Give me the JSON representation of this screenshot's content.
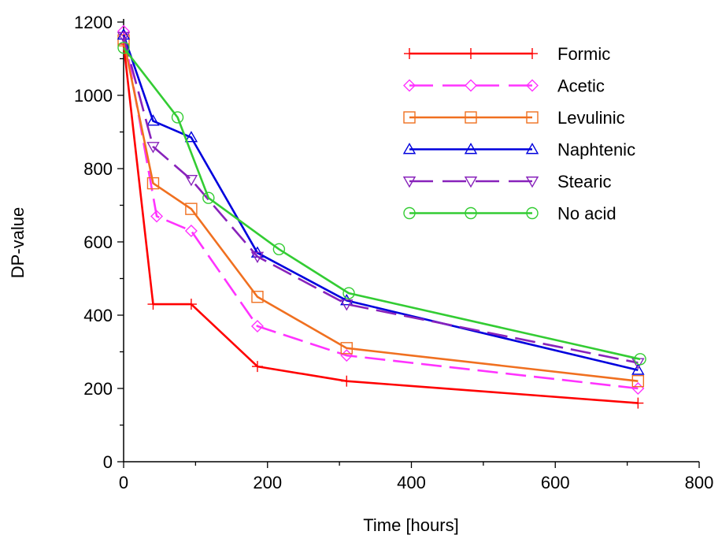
{
  "chart_data": {
    "type": "line",
    "title": "",
    "xlabel": "Time [hours]",
    "ylabel": "DP-value",
    "xlim": [
      0,
      800
    ],
    "ylim": [
      0,
      1200
    ],
    "xticks": [
      0,
      200,
      400,
      600,
      800
    ],
    "yticks": [
      0,
      200,
      400,
      600,
      800,
      1000,
      1200
    ],
    "grid": false,
    "legend_position": "top-right",
    "series": [
      {
        "name": "Formic",
        "color": "#ff0000",
        "marker": "plus",
        "dash": "solid",
        "points": [
          [
            0,
            1140
          ],
          [
            41,
            430
          ],
          [
            94,
            430
          ],
          [
            186,
            260
          ],
          [
            310,
            220
          ],
          [
            715,
            160
          ]
        ]
      },
      {
        "name": "Acetic",
        "color": "#ff33ff",
        "marker": "diamond",
        "dash": "dashed",
        "points": [
          [
            0,
            1175
          ],
          [
            46,
            670
          ],
          [
            94,
            630
          ],
          [
            186,
            370
          ],
          [
            310,
            290
          ],
          [
            715,
            200
          ]
        ]
      },
      {
        "name": "Levulinic",
        "color": "#f07020",
        "marker": "square",
        "dash": "solid",
        "points": [
          [
            0,
            1150
          ],
          [
            41,
            760
          ],
          [
            94,
            690
          ],
          [
            186,
            450
          ],
          [
            310,
            310
          ],
          [
            715,
            220
          ]
        ]
      },
      {
        "name": "Naphtenic",
        "color": "#0000dd",
        "marker": "triangle-up",
        "dash": "solid",
        "points": [
          [
            0,
            1165
          ],
          [
            41,
            930
          ],
          [
            94,
            885
          ],
          [
            186,
            570
          ],
          [
            310,
            440
          ],
          [
            715,
            250
          ]
        ]
      },
      {
        "name": "Stearic",
        "color": "#8822bb",
        "marker": "triangle-down",
        "dash": "dashed",
        "points": [
          [
            0,
            1160
          ],
          [
            41,
            860
          ],
          [
            94,
            770
          ],
          [
            186,
            560
          ],
          [
            310,
            430
          ],
          [
            715,
            270
          ]
        ]
      },
      {
        "name": "No acid",
        "color": "#33cc33",
        "marker": "circle",
        "dash": "solid",
        "points": [
          [
            0,
            1130
          ],
          [
            75,
            940
          ],
          [
            118,
            720
          ],
          [
            216,
            580
          ],
          [
            313,
            460
          ],
          [
            718,
            280
          ]
        ]
      }
    ]
  }
}
